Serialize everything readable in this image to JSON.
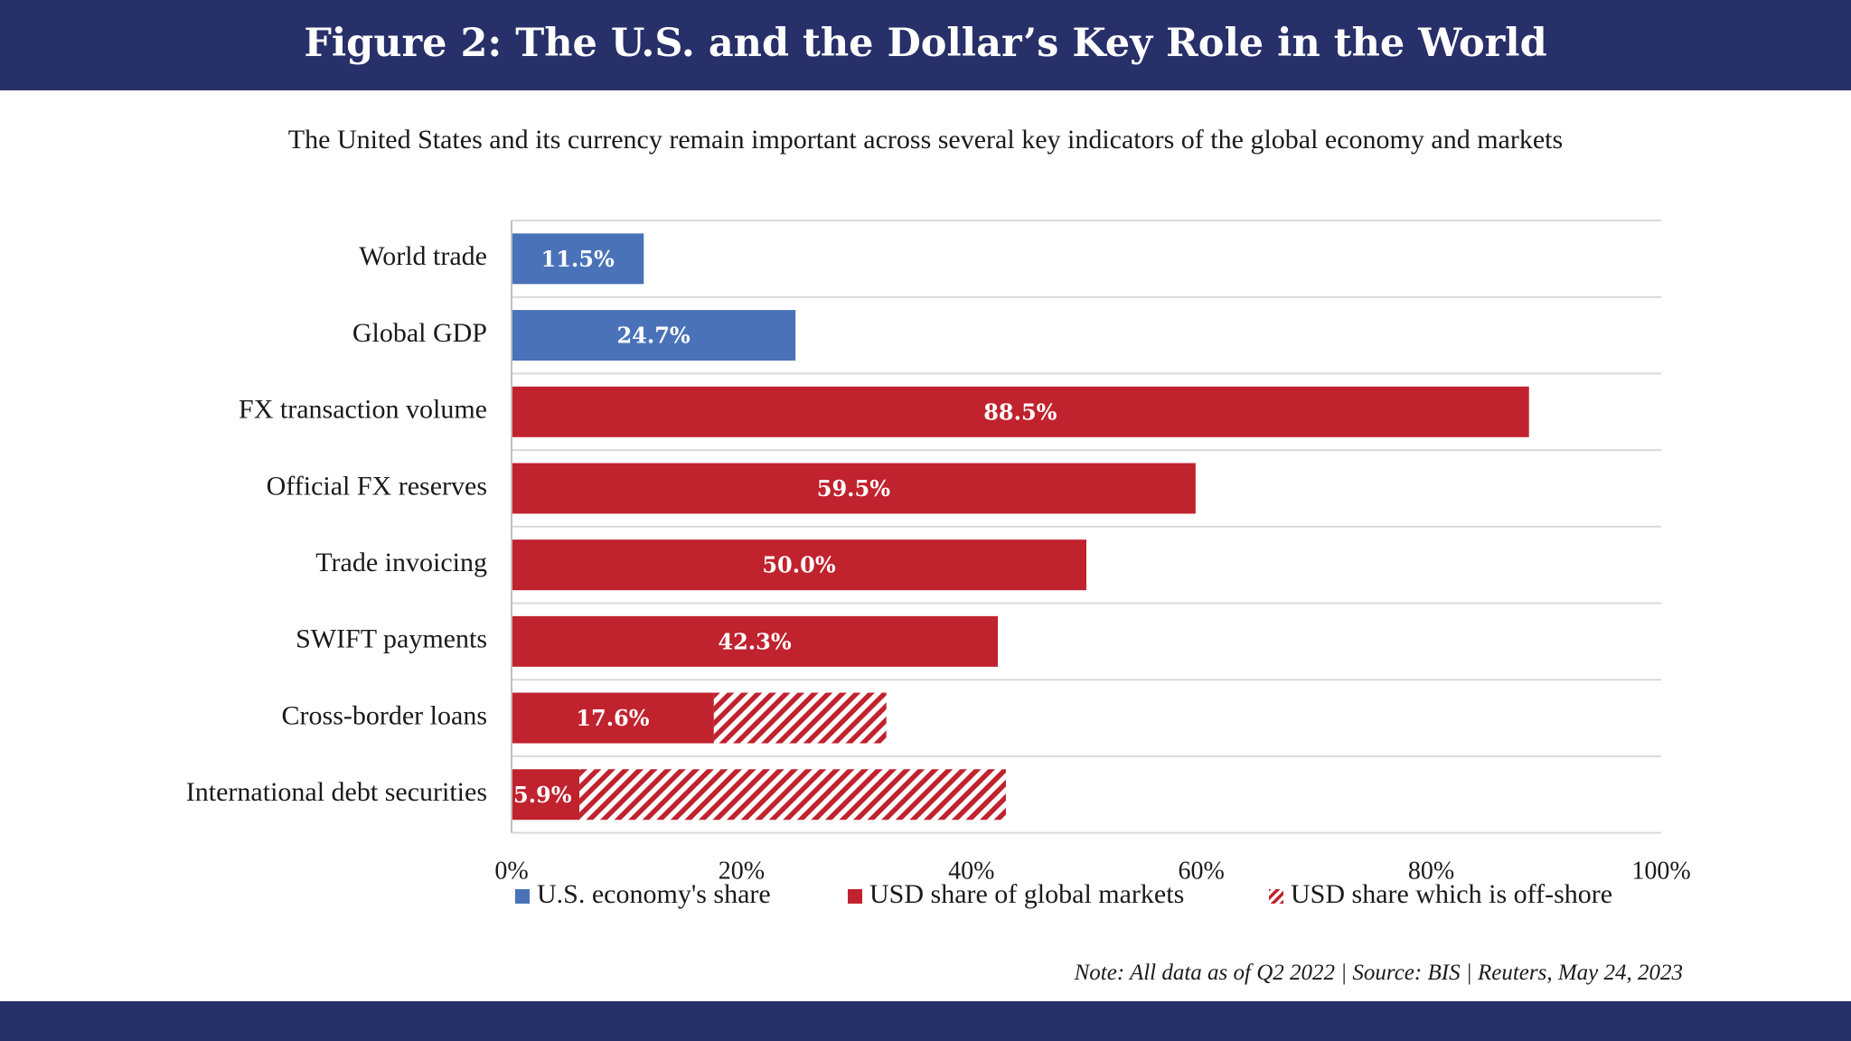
{
  "header": {
    "title": "Figure 2: The U.S. and the Dollar’s Key Role in the World",
    "subtitle": "The United States and its currency remain important across several key indicators of the global economy and markets"
  },
  "colors": {
    "band": "#28306a",
    "economy_blue": "#4a72b8",
    "usd_red": "#c0222e",
    "grid": "#d9d9d9"
  },
  "chart_data": {
    "type": "bar",
    "orientation": "horizontal",
    "stacked": true,
    "categories": [
      "World trade",
      "Global GDP",
      "FX transaction volume",
      "Official FX reserves",
      "Trade invoicing",
      "SWIFT payments",
      "Cross-border loans",
      "International debt securities"
    ],
    "series": [
      {
        "name": "U.S. economy's share",
        "color": "#4a72b8",
        "pattern": "solid",
        "values": [
          11.5,
          24.7,
          null,
          null,
          null,
          null,
          null,
          null
        ]
      },
      {
        "name": "USD share of global markets",
        "color": "#c0222e",
        "pattern": "solid",
        "values": [
          null,
          null,
          88.5,
          59.5,
          50.0,
          42.3,
          17.6,
          5.9
        ]
      },
      {
        "name": "USD share which is off-shore",
        "color": "#c0222e",
        "pattern": "hatched",
        "values": [
          null,
          null,
          null,
          null,
          null,
          null,
          15.0,
          37.1
        ]
      }
    ],
    "data_labels": [
      "11.5%",
      "24.7%",
      "88.5%",
      "59.5%",
      "50.0%",
      "42.3%",
      "17.6%",
      "5.9%"
    ],
    "xlim": [
      0,
      100
    ],
    "x_ticks": [
      "0%",
      "20%",
      "40%",
      "60%",
      "80%",
      "100%"
    ],
    "grid": "horizontal",
    "legend_position": "bottom"
  },
  "footer": {
    "note": "Note: All data as of Q2 2022 | Source: BIS | Reuters, May 24, 2023"
  }
}
